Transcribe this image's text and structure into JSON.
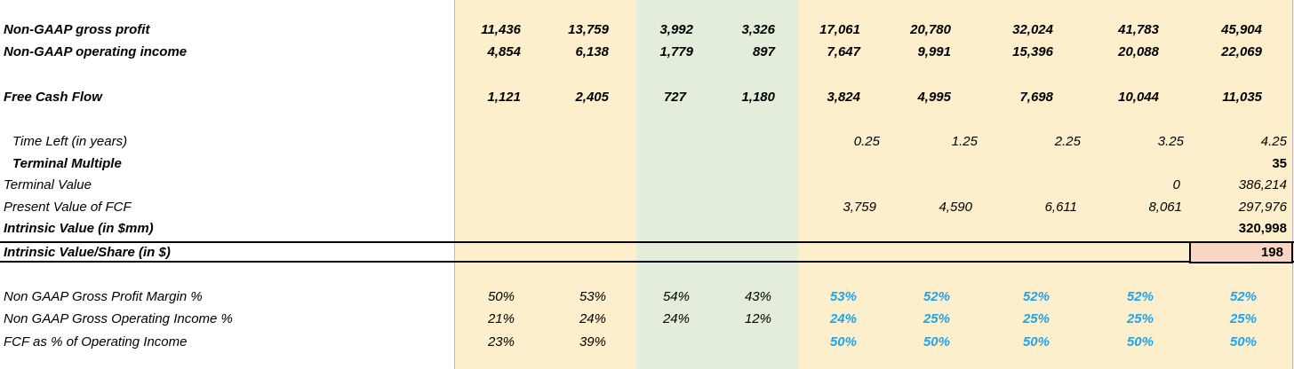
{
  "rows": {
    "gross_profit": {
      "label": "Non-GAAP gross profit",
      "values": [
        "11,436",
        "13,759",
        "3,992",
        "3,326",
        "17,061",
        "20,780",
        "32,024",
        "41,783",
        "45,904"
      ]
    },
    "operating_income": {
      "label": "Non-GAAP operating income",
      "values": [
        "4,854",
        "6,138",
        "1,779",
        "897",
        "7,647",
        "9,991",
        "15,396",
        "20,088",
        "22,069"
      ]
    },
    "free_cash_flow": {
      "label": "Free Cash Flow",
      "values": [
        "1,121",
        "2,405",
        "727",
        "1,180",
        "3,824",
        "4,995",
        "7,698",
        "10,044",
        "11,035"
      ]
    },
    "time_left": {
      "label": "Time Left (in years)",
      "values": [
        "0.25",
        "1.25",
        "2.25",
        "3.25",
        "4.25"
      ]
    },
    "terminal_multiple": {
      "label": "Terminal Multiple",
      "value": "35"
    },
    "terminal_value": {
      "label": "Terminal Value",
      "values": [
        "0",
        "386,214"
      ]
    },
    "present_value": {
      "label": "Present Value of FCF",
      "values": [
        "3,759",
        "4,590",
        "6,611",
        "8,061",
        "297,976"
      ]
    },
    "intrinsic_value": {
      "label": "Intrinsic Value (in $mm)",
      "value": "320,998"
    },
    "intrinsic_value_share": {
      "label": "Intrinsic Value/Share (in $)",
      "value": "198"
    },
    "gross_margin": {
      "label": "Non GAAP Gross Profit Margin %",
      "values": [
        "50%",
        "53%",
        "54%",
        "43%",
        "53%",
        "52%",
        "52%",
        "52%",
        "52%"
      ]
    },
    "operating_margin": {
      "label": "Non GAAP Gross Operating Income %",
      "values": [
        "21%",
        "24%",
        "24%",
        "12%",
        "24%",
        "25%",
        "25%",
        "25%",
        "25%"
      ]
    },
    "fcf_pct": {
      "label": "FCF as % of Operating Income",
      "values": [
        "23%",
        "39%",
        "",
        "",
        "50%",
        "50%",
        "50%",
        "50%",
        "50%"
      ]
    }
  },
  "colors": {
    "projection_fill": "#fdefcc",
    "quarter_fill": "#e2eedb",
    "highlight_fill": "#f9d6c4",
    "assumption_text": "#1fa3ee"
  }
}
